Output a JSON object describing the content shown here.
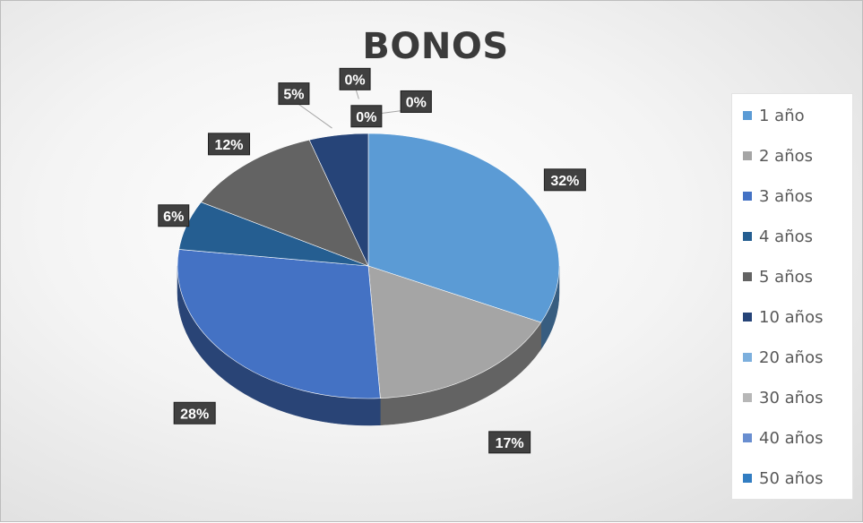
{
  "chart_data": {
    "type": "pie",
    "title": "BONOS",
    "categories": [
      "1 año",
      "2 años",
      "3 años",
      "4 años",
      "5 años",
      "10 años",
      "20 años",
      "30 años",
      "40 años",
      "50 años"
    ],
    "values": [
      32,
      17,
      28,
      6,
      12,
      5,
      0,
      0,
      0,
      0
    ],
    "labels": [
      "32%",
      "17%",
      "28%",
      "6%",
      "12%",
      "5%",
      "0%",
      "0%",
      "0%",
      "0%"
    ],
    "colors": [
      "#5b9bd5",
      "#a5a5a5",
      "#4472c4",
      "#255e91",
      "#636363",
      "#264478",
      "#7cafdd",
      "#b7b7b7",
      "#698ed0",
      "#327dc2"
    ],
    "legend_position": "right",
    "style": "3d-pie"
  }
}
